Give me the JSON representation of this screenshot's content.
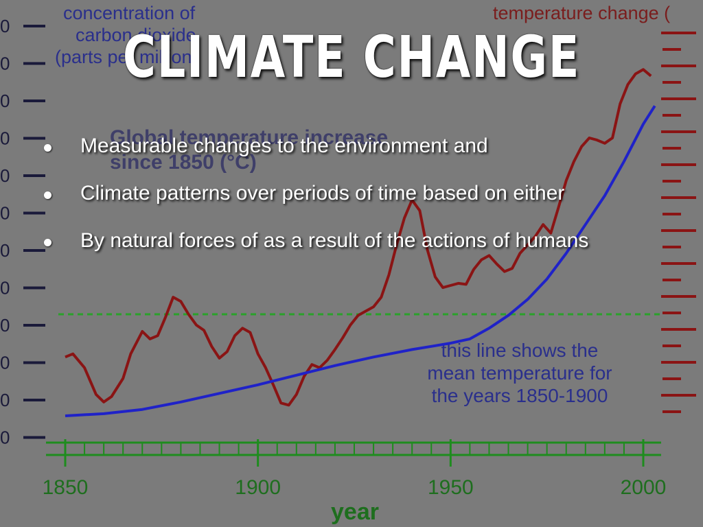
{
  "slide": {
    "title": "CLIMATE CHANGE",
    "bullets": [
      "Measurable changes to the environment and",
      "Climate patterns over periods of time based on either",
      "By natural forces of as a result of the actions of humans"
    ]
  },
  "chart_data": {
    "type": "line",
    "left_axis_title": [
      "concentration of",
      "carbon dioxide",
      "(parts per million)"
    ],
    "right_axis_title": "temperature change (",
    "inner_title": [
      "Global temperature increase",
      "since 1850 (°C)"
    ],
    "xlabel": "year",
    "x_ticks": [
      "1850",
      "1900",
      "1950",
      "2000"
    ],
    "xlim": [
      1850,
      2005
    ],
    "left_ticks_visible": [
      "0",
      "0",
      "0",
      "0",
      "0",
      "0",
      "0",
      "0",
      "0",
      "0",
      "0",
      "0"
    ],
    "annotation": [
      "this line shows the",
      "mean temperature for",
      "the years 1850-1900"
    ],
    "colors": {
      "co2": "#1f22c8",
      "temperature": "#8a1414",
      "axis": "#1e8c1e",
      "mean_line": "#2aa12a"
    },
    "series": [
      {
        "name": "carbon dioxide",
        "color": "#1f22c8",
        "points": [
          [
            1850,
            0.0
          ],
          [
            1860,
            0.02
          ],
          [
            1870,
            0.06
          ],
          [
            1880,
            0.13
          ],
          [
            1890,
            0.21
          ],
          [
            1900,
            0.29
          ],
          [
            1910,
            0.38
          ],
          [
            1920,
            0.47
          ],
          [
            1930,
            0.55
          ],
          [
            1940,
            0.62
          ],
          [
            1950,
            0.68
          ],
          [
            1955,
            0.72
          ],
          [
            1960,
            0.82
          ],
          [
            1965,
            0.94
          ],
          [
            1970,
            1.09
          ],
          [
            1975,
            1.28
          ],
          [
            1980,
            1.52
          ],
          [
            1985,
            1.79
          ],
          [
            1990,
            2.06
          ],
          [
            1995,
            2.38
          ],
          [
            2000,
            2.73
          ],
          [
            2003,
            2.9
          ]
        ]
      },
      {
        "name": "temperature change",
        "color": "#8a1414",
        "points": [
          [
            1850,
            0.55
          ],
          [
            1852,
            0.58
          ],
          [
            1855,
            0.45
          ],
          [
            1858,
            0.2
          ],
          [
            1860,
            0.13
          ],
          [
            1862,
            0.18
          ],
          [
            1865,
            0.35
          ],
          [
            1867,
            0.58
          ],
          [
            1870,
            0.79
          ],
          [
            1872,
            0.72
          ],
          [
            1874,
            0.75
          ],
          [
            1876,
            0.92
          ],
          [
            1878,
            1.11
          ],
          [
            1880,
            1.07
          ],
          [
            1882,
            0.95
          ],
          [
            1884,
            0.85
          ],
          [
            1886,
            0.8
          ],
          [
            1888,
            0.65
          ],
          [
            1890,
            0.54
          ],
          [
            1892,
            0.6
          ],
          [
            1894,
            0.75
          ],
          [
            1896,
            0.82
          ],
          [
            1898,
            0.78
          ],
          [
            1900,
            0.58
          ],
          [
            1902,
            0.45
          ],
          [
            1904,
            0.29
          ],
          [
            1906,
            0.12
          ],
          [
            1908,
            0.1
          ],
          [
            1910,
            0.2
          ],
          [
            1912,
            0.37
          ],
          [
            1914,
            0.48
          ],
          [
            1916,
            0.45
          ],
          [
            1918,
            0.52
          ],
          [
            1920,
            0.62
          ],
          [
            1922,
            0.73
          ],
          [
            1924,
            0.85
          ],
          [
            1926,
            0.94
          ],
          [
            1928,
            0.98
          ],
          [
            1930,
            1.02
          ],
          [
            1932,
            1.11
          ],
          [
            1934,
            1.32
          ],
          [
            1936,
            1.6
          ],
          [
            1938,
            1.85
          ],
          [
            1940,
            2.02
          ],
          [
            1942,
            1.92
          ],
          [
            1944,
            1.55
          ],
          [
            1946,
            1.3
          ],
          [
            1948,
            1.2
          ],
          [
            1950,
            1.22
          ],
          [
            1952,
            1.24
          ],
          [
            1954,
            1.23
          ],
          [
            1956,
            1.37
          ],
          [
            1958,
            1.46
          ],
          [
            1960,
            1.5
          ],
          [
            1962,
            1.42
          ],
          [
            1964,
            1.35
          ],
          [
            1966,
            1.38
          ],
          [
            1968,
            1.52
          ],
          [
            1970,
            1.6
          ],
          [
            1972,
            1.68
          ],
          [
            1974,
            1.79
          ],
          [
            1976,
            1.71
          ],
          [
            1978,
            1.95
          ],
          [
            1980,
            2.2
          ],
          [
            1982,
            2.38
          ],
          [
            1984,
            2.52
          ],
          [
            1986,
            2.6
          ],
          [
            1988,
            2.58
          ],
          [
            1990,
            2.55
          ],
          [
            1992,
            2.6
          ],
          [
            1994,
            2.92
          ],
          [
            1996,
            3.1
          ],
          [
            1998,
            3.2
          ],
          [
            2000,
            3.24
          ],
          [
            2002,
            3.18
          ]
        ]
      }
    ],
    "mean_reference": 0.95
  }
}
